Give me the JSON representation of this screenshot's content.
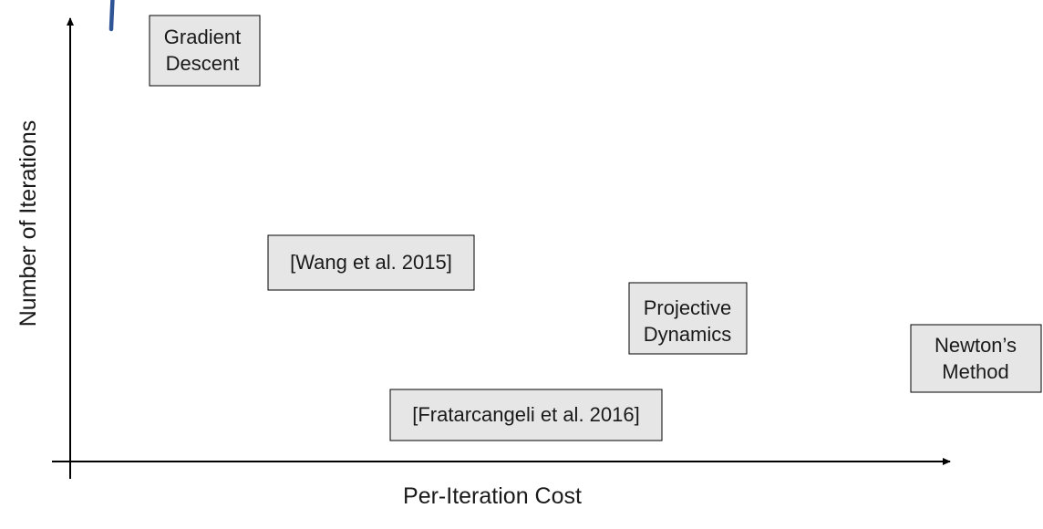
{
  "axes": {
    "x_label": "Per-Iteration Cost",
    "y_label": "Number of Iterations"
  },
  "methods": [
    {
      "id": "gradient-descent",
      "lines": [
        "Gradient",
        "Descent"
      ]
    },
    {
      "id": "wang-2015",
      "lines": [
        "[Wang et al. 2015]"
      ]
    },
    {
      "id": "projective-dynamics",
      "lines": [
        "Projective",
        "Dynamics"
      ]
    },
    {
      "id": "fratarcangeli-2016",
      "lines": [
        "[Fratarcangeli et al. 2016]"
      ]
    },
    {
      "id": "newtons-method",
      "lines": [
        "Newton’s",
        "Method"
      ]
    }
  ],
  "colors": {
    "curve": "#2f5597",
    "box_fill": "#e7e6e6",
    "axis": "#000000"
  }
}
